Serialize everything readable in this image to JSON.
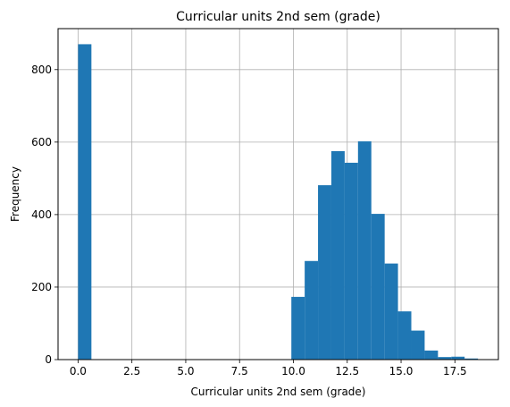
{
  "chart_data": {
    "type": "bar",
    "title": "Curricular units 2nd sem (grade)",
    "xlabel": "Curricular units 2nd sem (grade)",
    "ylabel": "Frequency",
    "xlim": [
      -0.93,
      19.52
    ],
    "ylim": [
      0,
      913
    ],
    "xticks": [
      0.0,
      2.5,
      5.0,
      7.5,
      10.0,
      12.5,
      15.0,
      17.5
    ],
    "xtick_labels": [
      "0.0",
      "2.5",
      "5.0",
      "7.5",
      "10.0",
      "12.5",
      "15.0",
      "17.5"
    ],
    "yticks": [
      0,
      200,
      400,
      600,
      800
    ],
    "ytick_labels": [
      "0",
      "200",
      "400",
      "600",
      "800"
    ],
    "grid": true,
    "bar_color": "#1f77b4",
    "bins": [
      {
        "x0": 0.0,
        "x1": 0.619,
        "value": 870
      },
      {
        "x0": 0.619,
        "x1": 1.238,
        "value": 0
      },
      {
        "x0": 1.238,
        "x1": 1.857,
        "value": 0
      },
      {
        "x0": 1.857,
        "x1": 2.476,
        "value": 0
      },
      {
        "x0": 2.476,
        "x1": 3.095,
        "value": 0
      },
      {
        "x0": 3.095,
        "x1": 3.714,
        "value": 0
      },
      {
        "x0": 3.714,
        "x1": 4.333,
        "value": 0
      },
      {
        "x0": 4.333,
        "x1": 4.952,
        "value": 0
      },
      {
        "x0": 4.952,
        "x1": 5.571,
        "value": 0
      },
      {
        "x0": 5.571,
        "x1": 6.19,
        "value": 0
      },
      {
        "x0": 6.19,
        "x1": 6.81,
        "value": 0
      },
      {
        "x0": 6.81,
        "x1": 7.429,
        "value": 0
      },
      {
        "x0": 7.429,
        "x1": 8.048,
        "value": 0
      },
      {
        "x0": 8.048,
        "x1": 8.667,
        "value": 0
      },
      {
        "x0": 8.667,
        "x1": 9.286,
        "value": 0
      },
      {
        "x0": 9.286,
        "x1": 9.905,
        "value": 0
      },
      {
        "x0": 9.905,
        "x1": 10.524,
        "value": 173
      },
      {
        "x0": 10.524,
        "x1": 11.143,
        "value": 272
      },
      {
        "x0": 11.143,
        "x1": 11.762,
        "value": 481
      },
      {
        "x0": 11.762,
        "x1": 12.381,
        "value": 575
      },
      {
        "x0": 12.381,
        "x1": 13.0,
        "value": 543
      },
      {
        "x0": 13.0,
        "x1": 13.619,
        "value": 602
      },
      {
        "x0": 13.619,
        "x1": 14.238,
        "value": 402
      },
      {
        "x0": 14.238,
        "x1": 14.857,
        "value": 265
      },
      {
        "x0": 14.857,
        "x1": 15.476,
        "value": 133
      },
      {
        "x0": 15.476,
        "x1": 16.095,
        "value": 80
      },
      {
        "x0": 16.095,
        "x1": 16.714,
        "value": 25
      },
      {
        "x0": 16.714,
        "x1": 17.333,
        "value": 7
      },
      {
        "x0": 17.333,
        "x1": 17.952,
        "value": 8
      },
      {
        "x0": 17.952,
        "x1": 18.571,
        "value": 3
      }
    ]
  }
}
